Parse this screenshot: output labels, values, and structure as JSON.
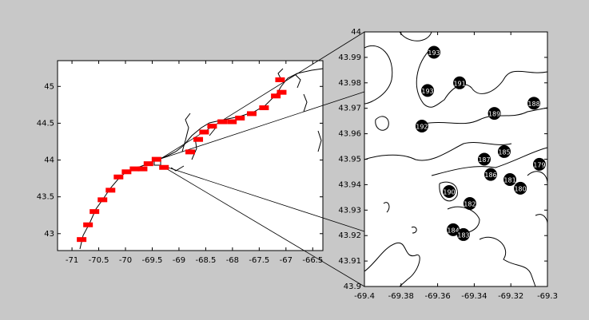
{
  "chart_data": [
    {
      "type": "map",
      "xlim": [
        -71.27,
        -66.31
      ],
      "ylim": [
        42.77,
        45.35
      ],
      "xticks": [
        -71,
        -70.5,
        -70,
        -69.5,
        -69,
        -68.5,
        -68,
        -67.5,
        -67,
        -66.5
      ],
      "yticks": [
        43,
        43.5,
        44,
        44.5,
        45
      ],
      "series": [
        {
          "color": "#ff0000",
          "x": [
            -70.82,
            -70.7,
            -70.58,
            -70.43,
            -70.28,
            -70.13,
            -69.98,
            -69.83,
            -69.68,
            -69.57,
            -69.42,
            -69.28,
            -68.79,
            -68.64,
            -68.53,
            -68.38,
            -68.19,
            -68.01,
            -67.86,
            -67.64,
            -67.41,
            -67.19,
            -67.08,
            -67.11
          ],
          "y": [
            42.92,
            43.12,
            43.3,
            43.46,
            43.59,
            43.77,
            43.84,
            43.88,
            43.88,
            43.95,
            44.01,
            43.9,
            44.11,
            44.28,
            44.38,
            44.46,
            44.52,
            44.52,
            44.57,
            44.63,
            44.71,
            44.87,
            44.92,
            45.09
          ]
        }
      ]
    },
    {
      "type": "scatter",
      "xlim": [
        -69.4,
        -69.3
      ],
      "ylim": [
        43.9,
        44
      ],
      "xticks": [
        -69.4,
        -69.38,
        -69.36,
        -69.34,
        -69.32,
        -69.3
      ],
      "yticks": [
        43.9,
        43.91,
        43.92,
        43.93,
        43.94,
        43.95,
        43.96,
        43.97,
        43.98,
        43.99,
        44
      ],
      "color": "#000000",
      "labels": [
        "193",
        "191",
        "193",
        "192",
        "189",
        "188",
        "185",
        "187",
        "186",
        "181",
        "180",
        "179",
        "190",
        "182",
        "184",
        "183"
      ],
      "x": [
        -69.362,
        -69.348,
        -69.3655,
        -69.3686,
        -69.329,
        -69.3074,
        -69.3236,
        -69.3345,
        -69.331,
        -69.3205,
        -69.3148,
        -69.3044,
        -69.3537,
        -69.3424,
        -69.3515,
        -69.3459
      ],
      "y": [
        43.992,
        43.98,
        43.977,
        43.963,
        43.968,
        43.972,
        43.953,
        43.95,
        43.944,
        43.942,
        43.9386,
        43.948,
        43.9373,
        43.9326,
        43.9223,
        43.9204
      ]
    }
  ]
}
